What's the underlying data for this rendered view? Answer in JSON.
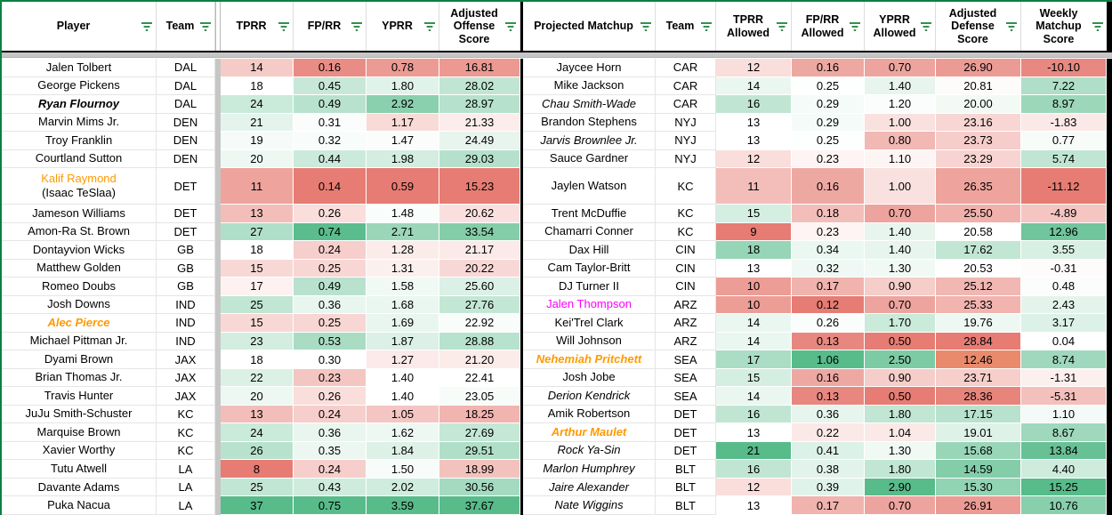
{
  "colors": {
    "scale_red": "#e67c73",
    "scale_white": "#ffffff",
    "scale_green": "#57bb8a",
    "filter_icon_green": "#188038",
    "range_border_green": "#0b8043",
    "frozen_divider_gray": "#c6c6c6",
    "section_border_black": "#000000",
    "orange_player": "#ff9900",
    "magenta_player": "#ff00ff"
  },
  "scales": {
    "tprr": {
      "min": 8,
      "mid": 18,
      "max": 37,
      "invert": false
    },
    "fprr": {
      "min": 0.14,
      "mid": 0.3,
      "max": 0.75,
      "invert": false
    },
    "yprr": {
      "min": 0.59,
      "mid": 1.4,
      "max": 3.59,
      "invert": false
    },
    "score": {
      "min": 15.23,
      "mid": 22.3,
      "max": 37.67,
      "invert": false
    },
    "tprr_allowed": {
      "min": 9,
      "mid": 13,
      "max": 21,
      "invert": false
    },
    "fprr_allowed": {
      "min": 0.12,
      "mid": 0.24,
      "max": 1.06,
      "invert": false
    },
    "yprr_allowed": {
      "min": 0.5,
      "mid": 1.15,
      "max": 2.9,
      "invert": false
    },
    "def_score": {
      "min": 12.46,
      "mid": 20.6,
      "max": 28.84,
      "invert": true
    },
    "weekly": {
      "min": -11.12,
      "mid": 0,
      "max": 15.25,
      "invert": false
    }
  },
  "left": {
    "headers": [
      "Player",
      "Team",
      "TPRR",
      "FP/RR",
      "YPRR",
      "Adjusted Offense Score"
    ],
    "rows": [
      {
        "player": "Jalen Tolbert",
        "team": "DAL",
        "tprr": "14",
        "fprr": "0.16",
        "yprr": "0.78",
        "score": "16.81"
      },
      {
        "player": "George Pickens",
        "team": "DAL",
        "tprr": "18",
        "fprr": "0.45",
        "yprr": "1.80",
        "score": "28.02"
      },
      {
        "player": "Ryan Flournoy",
        "team": "DAL",
        "style": "bold-italic",
        "tprr": "24",
        "fprr": "0.49",
        "yprr": "2.92",
        "score": "28.97"
      },
      {
        "player": "Marvin Mims Jr.",
        "team": "DEN",
        "tprr": "21",
        "fprr": "0.31",
        "yprr": "1.17",
        "score": "21.33"
      },
      {
        "player": "Troy Franklin",
        "team": "DEN",
        "tprr": "19",
        "fprr": "0.32",
        "yprr": "1.47",
        "score": "24.49"
      },
      {
        "player": "Courtland Sutton",
        "team": "DEN",
        "tprr": "20",
        "fprr": "0.44",
        "yprr": "1.98",
        "score": "29.03"
      },
      {
        "player": "Kalif Raymond",
        "note": "(Isaac TeSlaa)",
        "team": "DET",
        "style": "orange",
        "tall": true,
        "tprr": "11",
        "fprr": "0.14",
        "yprr": "0.59",
        "score": "15.23"
      },
      {
        "player": "Jameson Williams",
        "team": "DET",
        "tprr": "13",
        "fprr": "0.26",
        "yprr": "1.48",
        "score": "20.62"
      },
      {
        "player": "Amon-Ra St. Brown",
        "team": "DET",
        "tprr": "27",
        "fprr": "0.74",
        "yprr": "2.71",
        "score": "33.54"
      },
      {
        "player": "Dontayvion Wicks",
        "team": "GB",
        "tprr": "18",
        "fprr": "0.24",
        "yprr": "1.28",
        "score": "21.17"
      },
      {
        "player": "Matthew Golden",
        "team": "GB",
        "tprr": "15",
        "fprr": "0.25",
        "yprr": "1.31",
        "score": "20.22"
      },
      {
        "player": "Romeo Doubs",
        "team": "GB",
        "tprr": "17",
        "fprr": "0.49",
        "yprr": "1.58",
        "score": "25.60"
      },
      {
        "player": "Josh Downs",
        "team": "IND",
        "tprr": "25",
        "fprr": "0.36",
        "yprr": "1.68",
        "score": "27.76"
      },
      {
        "player": "Alec Pierce",
        "team": "IND",
        "style": "orange-bold-italic",
        "tprr": "15",
        "fprr": "0.25",
        "yprr": "1.69",
        "score": "22.92"
      },
      {
        "player": "Michael Pittman Jr.",
        "team": "IND",
        "tprr": "23",
        "fprr": "0.53",
        "yprr": "1.87",
        "score": "28.88"
      },
      {
        "player": "Dyami Brown",
        "team": "JAX",
        "tprr": "18",
        "fprr": "0.30",
        "yprr": "1.27",
        "score": "21.20"
      },
      {
        "player": "Brian Thomas Jr.",
        "team": "JAX",
        "tprr": "22",
        "fprr": "0.23",
        "yprr": "1.40",
        "score": "22.41"
      },
      {
        "player": "Travis Hunter",
        "team": "JAX",
        "tprr": "20",
        "fprr": "0.26",
        "yprr": "1.40",
        "score": "23.05"
      },
      {
        "player": "JuJu Smith-Schuster",
        "team": "KC",
        "tprr": "13",
        "fprr": "0.24",
        "yprr": "1.05",
        "score": "18.25"
      },
      {
        "player": "Marquise Brown",
        "team": "KC",
        "tprr": "24",
        "fprr": "0.36",
        "yprr": "1.62",
        "score": "27.69"
      },
      {
        "player": "Xavier Worthy",
        "team": "KC",
        "tprr": "26",
        "fprr": "0.35",
        "yprr": "1.84",
        "score": "29.51"
      },
      {
        "player": "Tutu Atwell",
        "team": "LA",
        "tprr": "8",
        "fprr": "0.24",
        "yprr": "1.50",
        "score": "18.99"
      },
      {
        "player": "Davante Adams",
        "team": "LA",
        "tprr": "25",
        "fprr": "0.43",
        "yprr": "2.02",
        "score": "30.56"
      },
      {
        "player": "Puka Nacua",
        "team": "LA",
        "tprr": "37",
        "fprr": "0.75",
        "yprr": "3.59",
        "score": "37.67"
      }
    ]
  },
  "right": {
    "headers": [
      "Projected Matchup",
      "Team",
      "TPRR Allowed",
      "FP/RR Allowed",
      "YPRR Allowed",
      "Adjusted Defense Score",
      "Weekly Matchup Score"
    ],
    "rows": [
      {
        "matchup": "Jaycee Horn",
        "team": "CAR",
        "tprr": "12",
        "fprr": "0.16",
        "yprr": "0.70",
        "def": "26.90",
        "weekly": "-10.10"
      },
      {
        "matchup": "Mike Jackson",
        "team": "CAR",
        "tprr": "14",
        "fprr": "0.25",
        "yprr": "1.40",
        "def": "20.81",
        "weekly": "7.22"
      },
      {
        "matchup": "Chau Smith-Wade",
        "team": "CAR",
        "style": "italic",
        "tprr": "16",
        "fprr": "0.29",
        "yprr": "1.20",
        "def": "20.00",
        "weekly": "8.97"
      },
      {
        "matchup": "Brandon Stephens",
        "team": "NYJ",
        "tprr": "13",
        "fprr": "0.29",
        "yprr": "1.00",
        "def": "23.16",
        "weekly": "-1.83"
      },
      {
        "matchup": "Jarvis Brownlee Jr.",
        "team": "NYJ",
        "style": "italic",
        "tprr": "13",
        "fprr": "0.25",
        "yprr": "0.80",
        "def": "23.73",
        "weekly": "0.77"
      },
      {
        "matchup": "Sauce Gardner",
        "team": "NYJ",
        "tprr": "12",
        "fprr": "0.23",
        "yprr": "1.10",
        "def": "23.29",
        "weekly": "5.74"
      },
      {
        "matchup": "Jaylen Watson",
        "team": "KC",
        "tall": true,
        "tprr": "11",
        "fprr": "0.16",
        "yprr": "1.00",
        "def": "26.35",
        "weekly": "-11.12"
      },
      {
        "matchup": "Trent McDuffie",
        "team": "KC",
        "tprr": "15",
        "fprr": "0.18",
        "yprr": "0.70",
        "def": "25.50",
        "weekly": "-4.89"
      },
      {
        "matchup": "Chamarri Conner",
        "team": "KC",
        "tprr": "9",
        "fprr": "0.23",
        "yprr": "1.40",
        "def": "20.58",
        "weekly": "12.96"
      },
      {
        "matchup": "Dax Hill",
        "team": "CIN",
        "tprr": "18",
        "fprr": "0.34",
        "yprr": "1.40",
        "def": "17.62",
        "weekly": "3.55"
      },
      {
        "matchup": "Cam Taylor-Britt",
        "team": "CIN",
        "tprr": "13",
        "fprr": "0.32",
        "yprr": "1.30",
        "def": "20.53",
        "weekly": "-0.31"
      },
      {
        "matchup": "DJ Turner II",
        "team": "CIN",
        "tprr": "10",
        "fprr": "0.17",
        "yprr": "0.90",
        "def": "25.12",
        "weekly": "0.48"
      },
      {
        "matchup": "Jalen Thompson",
        "team": "ARZ",
        "style": "magenta",
        "tprr": "10",
        "fprr": "0.12",
        "yprr": "0.70",
        "def": "25.33",
        "weekly": "2.43"
      },
      {
        "matchup": "Kei'Trel Clark",
        "team": "ARZ",
        "tprr": "14",
        "fprr": "0.26",
        "yprr": "1.70",
        "def": "19.76",
        "weekly": "3.17"
      },
      {
        "matchup": "Will Johnson",
        "team": "ARZ",
        "tprr": "14",
        "fprr": "0.13",
        "yprr": "0.50",
        "def": "28.84",
        "weekly": "0.04"
      },
      {
        "matchup": "Nehemiah Pritchett",
        "team": "SEA",
        "style": "orange-bold-italic",
        "def_color": "#e98a6d",
        "tprr": "17",
        "fprr": "1.06",
        "yprr": "2.50",
        "def": "12.46",
        "weekly": "8.74"
      },
      {
        "matchup": "Josh Jobe",
        "team": "SEA",
        "tprr": "15",
        "fprr": "0.16",
        "yprr": "0.90",
        "def": "23.71",
        "weekly": "-1.31"
      },
      {
        "matchup": "Derion Kendrick",
        "team": "SEA",
        "style": "italic",
        "tprr": "14",
        "fprr": "0.13",
        "yprr": "0.50",
        "def": "28.36",
        "weekly": "-5.31"
      },
      {
        "matchup": "Amik Robertson",
        "team": "DET",
        "tprr": "16",
        "fprr": "0.36",
        "yprr": "1.80",
        "def": "17.15",
        "weekly": "1.10"
      },
      {
        "matchup": "Arthur Maulet",
        "team": "DET",
        "style": "orange-bold-italic",
        "tprr": "13",
        "fprr": "0.22",
        "yprr": "1.04",
        "def": "19.01",
        "weekly": "8.67"
      },
      {
        "matchup": "Rock Ya-Sin",
        "team": "DET",
        "style": "italic",
        "tprr": "21",
        "fprr": "0.41",
        "yprr": "1.30",
        "def": "15.68",
        "weekly": "13.84"
      },
      {
        "matchup": "Marlon Humphrey",
        "team": "BLT",
        "style": "italic",
        "tprr": "16",
        "fprr": "0.38",
        "yprr": "1.80",
        "def": "14.59",
        "weekly": "4.40"
      },
      {
        "matchup": "Jaire Alexander",
        "team": "BLT",
        "style": "italic",
        "tprr": "12",
        "fprr": "0.39",
        "yprr": "2.90",
        "def": "15.30",
        "weekly": "15.25"
      },
      {
        "matchup": "Nate Wiggins",
        "team": "BLT",
        "style": "italic",
        "tprr": "13",
        "fprr": "0.17",
        "yprr": "0.70",
        "def": "26.91",
        "weekly": "10.76"
      }
    ]
  }
}
